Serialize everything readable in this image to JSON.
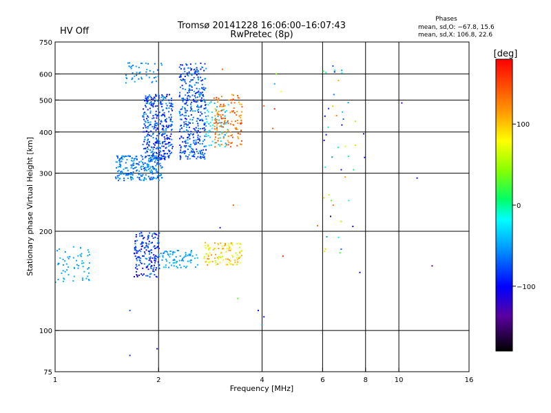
{
  "status": {
    "text": "HV Off",
    "color": "#cc0000"
  },
  "header": {
    "title_line1": "Tromsø 20141228 16:06:00–16:07:43",
    "title_line2": "RwPretec (8p)"
  },
  "phases_box": {
    "title": "Phases",
    "line_o": "mean, sd,O: −67.8, 15.6",
    "line_x": "mean, sd,X: 106.8, 22.6"
  },
  "colorbar": {
    "unit_label": "[deg]",
    "ticks": [
      {
        "value": 100,
        "label": "100"
      },
      {
        "value": 0,
        "label": "0"
      },
      {
        "value": -100,
        "label": "−100"
      }
    ],
    "range": [
      -180,
      180
    ]
  },
  "chart_data": {
    "type": "scatter",
    "xlabel": "Frequency [MHz]",
    "ylabel": "Stationary phase Virtual Height [km]",
    "x_scale": "log",
    "y_scale": "log",
    "xlim": [
      1,
      16
    ],
    "ylim": [
      75,
      750
    ],
    "grid": true,
    "x_ticks": [
      {
        "value": 1,
        "label": "1"
      },
      {
        "value": 2,
        "label": "2"
      },
      {
        "value": 4,
        "label": "4"
      },
      {
        "value": 6,
        "label": "6"
      },
      {
        "value": 8,
        "label": "8"
      },
      {
        "value": 10,
        "label": "10"
      },
      {
        "value": 16,
        "label": "16"
      }
    ],
    "y_ticks": [
      {
        "value": 75,
        "label": "75"
      },
      {
        "value": 100,
        "label": "100"
      },
      {
        "value": 200,
        "label": "200"
      },
      {
        "value": 300,
        "label": "300"
      },
      {
        "value": 400,
        "label": "400"
      },
      {
        "value": 500,
        "label": "500"
      },
      {
        "value": 600,
        "label": "600"
      },
      {
        "value": 750,
        "label": "750"
      }
    ],
    "clusters": [
      {
        "name": "E echoes 1.0–1.3 MHz",
        "freq": [
          1.0,
          1.28
        ],
        "height": [
          140,
          180
        ],
        "phase": [
          -65,
          -45
        ],
        "count": 60
      },
      {
        "name": "E echoes 1.7–2.0 MHz",
        "freq": [
          1.7,
          2.02
        ],
        "height": [
          145,
          200
        ],
        "phase": [
          -120,
          -60
        ],
        "count": 170
      },
      {
        "name": "E echoes 2.0–2.6 MHz",
        "freq": [
          2.0,
          2.6
        ],
        "height": [
          155,
          175
        ],
        "phase": [
          -70,
          -40
        ],
        "count": 80
      },
      {
        "name": "E echoes 2.7–3.5 MHz",
        "freq": [
          2.7,
          3.5
        ],
        "height": [
          158,
          185
        ],
        "phase": [
          60,
          130
        ],
        "count": 110
      },
      {
        "name": "F trace rising",
        "freq": [
          1.5,
          2.05
        ],
        "height": [
          285,
          340
        ],
        "phase": [
          -90,
          -45
        ],
        "count": 240
      },
      {
        "name": "F 1.8–2.2 MHz",
        "freq": [
          1.8,
          2.2
        ],
        "height": [
          330,
          520
        ],
        "phase": [
          -115,
          -55
        ],
        "count": 350
      },
      {
        "name": "F 2.3–2.75 MHz",
        "freq": [
          2.3,
          2.75
        ],
        "height": [
          330,
          650
        ],
        "phase": [
          -110,
          -50
        ],
        "count": 380
      },
      {
        "name": "F upper 1.6–2.05 MHz",
        "freq": [
          1.6,
          2.05
        ],
        "height": [
          560,
          650
        ],
        "phase": [
          -75,
          -50
        ],
        "count": 45
      },
      {
        "name": "F 2.75–3.2 MHz",
        "freq": [
          2.75,
          3.2
        ],
        "height": [
          360,
          500
        ],
        "phase": [
          -55,
          -20
        ],
        "count": 70
      },
      {
        "name": "F 2.9–3.5 MHz",
        "freq": [
          2.9,
          3.5
        ],
        "height": [
          360,
          520
        ],
        "phase": [
          110,
          160
        ],
        "count": 140
      },
      {
        "name": "sparse 6–7.5 MHz",
        "freq": [
          6.0,
          7.5
        ],
        "height": [
          150,
          650
        ],
        "phase": [
          -120,
          140
        ],
        "count": 45
      }
    ],
    "points": [
      {
        "f": 1.65,
        "h": 84,
        "phase": -90
      },
      {
        "f": 1.98,
        "h": 88,
        "phase": -110
      },
      {
        "f": 1.65,
        "h": 115,
        "phase": -80
      },
      {
        "f": 3.3,
        "h": 240,
        "phase": 140
      },
      {
        "f": 3.9,
        "h": 115,
        "phase": -100
      },
      {
        "f": 4.05,
        "h": 110,
        "phase": -110
      },
      {
        "f": 4.0,
        "h": 104,
        "phase": -60
      },
      {
        "f": 3.4,
        "h": 125,
        "phase": 30
      },
      {
        "f": 3.02,
        "h": 205,
        "phase": -125
      },
      {
        "f": 4.05,
        "h": 480,
        "phase": 150
      },
      {
        "f": 4.35,
        "h": 470,
        "phase": 170
      },
      {
        "f": 4.3,
        "h": 410,
        "phase": 150
      },
      {
        "f": 4.4,
        "h": 600,
        "phase": 40
      },
      {
        "f": 4.35,
        "h": 560,
        "phase": -50
      },
      {
        "f": 4.55,
        "h": 530,
        "phase": 80
      },
      {
        "f": 4.6,
        "h": 168,
        "phase": 170
      },
      {
        "f": 5.8,
        "h": 208,
        "phase": 140
      },
      {
        "f": 7.9,
        "h": 395,
        "phase": -120
      },
      {
        "f": 7.95,
        "h": 335,
        "phase": -110
      },
      {
        "f": 7.7,
        "h": 150,
        "phase": -110
      },
      {
        "f": 10.2,
        "h": 490,
        "phase": -130
      },
      {
        "f": 11.3,
        "h": 290,
        "phase": -110
      },
      {
        "f": 12.5,
        "h": 157,
        "phase": -140
      },
      {
        "f": 3.07,
        "h": 620,
        "phase": 140
      }
    ]
  }
}
